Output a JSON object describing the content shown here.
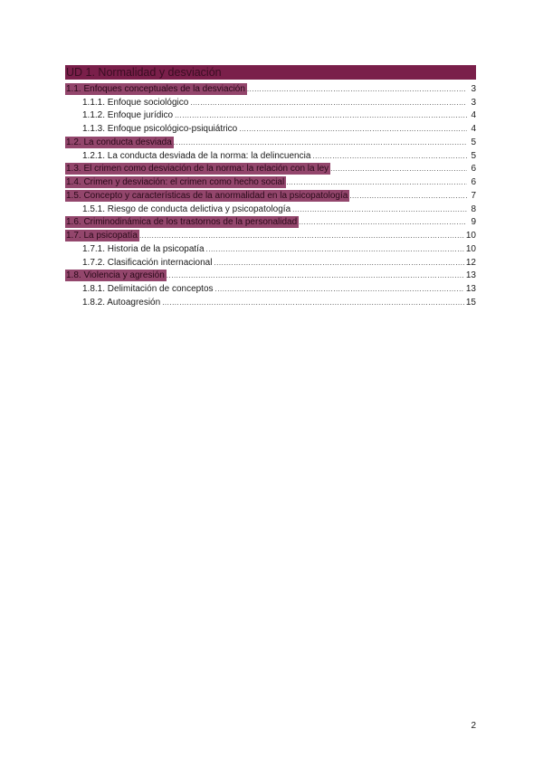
{
  "colors": {
    "heading_highlight": "#7a1f4a",
    "section_highlight": "#93466c"
  },
  "toc": {
    "title": "UD 1. Normalidad y desviación",
    "entries": [
      {
        "level": 1,
        "label": "1.1. Enfoques conceptuales de la desviación",
        "page": "3"
      },
      {
        "level": 2,
        "label": "1.1.1. Enfoque sociológico",
        "page": "3"
      },
      {
        "level": 2,
        "label": "1.1.2. Enfoque jurídico",
        "page": "4"
      },
      {
        "level": 2,
        "label": "1.1.3. Enfoque psicológico-psiquiátrico",
        "page": "4"
      },
      {
        "level": 1,
        "label": "1.2. La conducta desviada",
        "page": "5"
      },
      {
        "level": 2,
        "label": "1.2.1. La conducta desviada de la norma: la delincuencia",
        "page": "5"
      },
      {
        "level": 1,
        "label": "1.3. El crimen como desviación de la norma: la relación con la ley",
        "page": "6"
      },
      {
        "level": 1,
        "label": "1.4. Crimen y desviación: el crimen como hecho social",
        "page": "6"
      },
      {
        "level": 1,
        "label": "1.5. Concepto y características de la anormalidad en la psicopatología",
        "page": "7"
      },
      {
        "level": 2,
        "label": "1.5.1. Riesgo de conducta delictiva y psicopatología",
        "page": "8"
      },
      {
        "level": 1,
        "label": "1.6. Criminodinámica de los trastornos de la personalidad",
        "page": "9"
      },
      {
        "level": 1,
        "label": "1.7. La psicopatía",
        "page": "10"
      },
      {
        "level": 2,
        "label": "1.7.1. Historia de la psicopatía",
        "page": "10"
      },
      {
        "level": 2,
        "label": "1.7.2. Clasificación internacional",
        "page": "12"
      },
      {
        "level": 1,
        "label": "1.8. Violencia y agresión",
        "page": "13"
      },
      {
        "level": 2,
        "label": "1.8.1. Delimitación de conceptos",
        "page": "13"
      },
      {
        "level": 2,
        "label": "1.8.2. Autoagresión",
        "page": "15"
      }
    ]
  },
  "footer": {
    "page_number": "2"
  }
}
